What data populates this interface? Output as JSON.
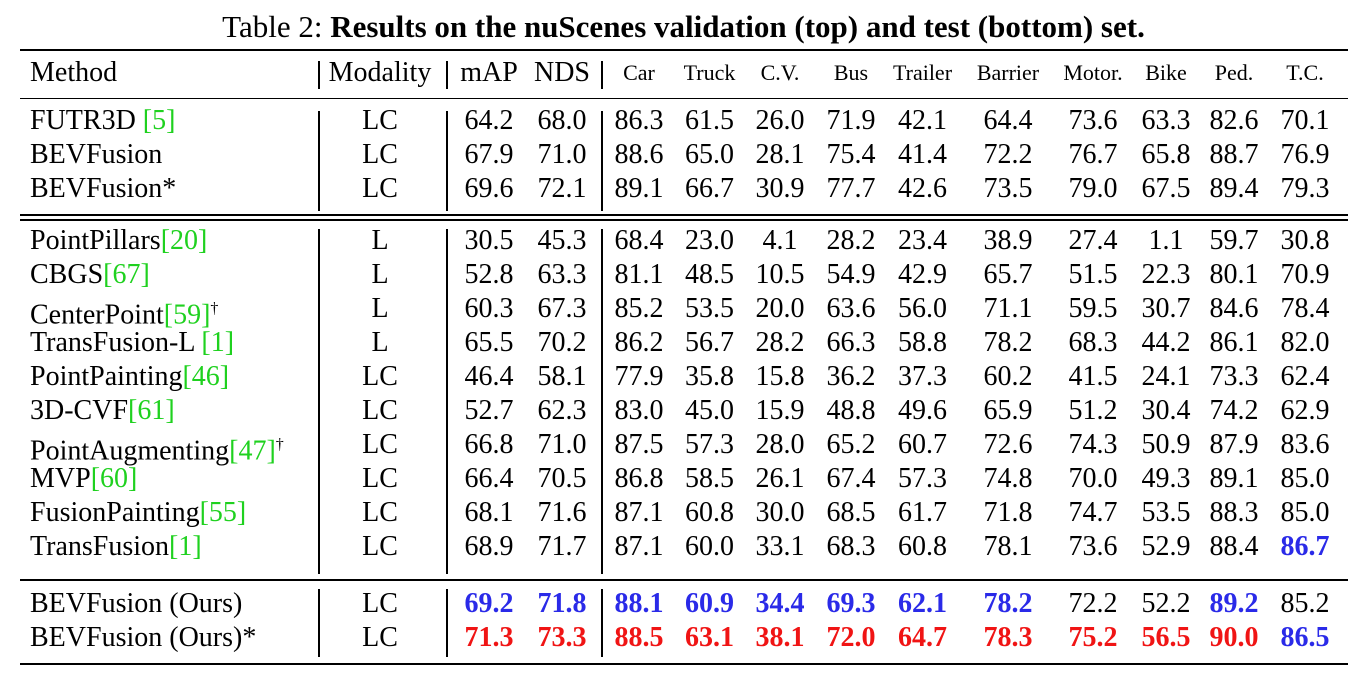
{
  "caption": {
    "label": "Table 2:",
    "title": "Results on the nuScenes validation (top) and test (bottom) set."
  },
  "header": {
    "method": "Method",
    "modality": "Modality",
    "map": "mAP",
    "nds": "NDS",
    "classes": [
      "Car",
      "Truck",
      "C.V.",
      "Bus",
      "Trailer",
      "Barrier",
      "Motor.",
      "Bike",
      "Ped.",
      "T.C."
    ]
  },
  "validation_rows": [
    {
      "name": "FUTR3D ",
      "cite": "[5]",
      "sup": "",
      "modality": "LC",
      "map": "64.2",
      "nds": "68.0",
      "classes": [
        "86.3",
        "61.5",
        "26.0",
        "71.9",
        "42.1",
        "64.4",
        "73.6",
        "63.3",
        "82.6",
        "70.1"
      ]
    },
    {
      "name": "BEVFusion",
      "cite": "",
      "sup": "",
      "modality": "LC",
      "map": "67.9",
      "nds": "71.0",
      "classes": [
        "88.6",
        "65.0",
        "28.1",
        "75.4",
        "41.4",
        "72.2",
        "76.7",
        "65.8",
        "88.7",
        "76.9"
      ]
    },
    {
      "name": "BEVFusion*",
      "cite": "",
      "sup": "",
      "modality": "LC",
      "map": "69.6",
      "nds": "72.1",
      "classes": [
        "89.1",
        "66.7",
        "30.9",
        "77.7",
        "42.6",
        "73.5",
        "79.0",
        "67.5",
        "89.4",
        "79.3"
      ]
    }
  ],
  "test_rows": [
    {
      "name": "PointPillars",
      "cite": "[20]",
      "sup": "",
      "modality": "L",
      "map": "30.5",
      "nds": "45.3",
      "classes": [
        "68.4",
        "23.0",
        "4.1",
        "28.2",
        "23.4",
        "38.9",
        "27.4",
        "1.1",
        "59.7",
        "30.8"
      ]
    },
    {
      "name": "CBGS",
      "cite": "[67]",
      "sup": "",
      "modality": "L",
      "map": "52.8",
      "nds": "63.3",
      "classes": [
        "81.1",
        "48.5",
        "10.5",
        "54.9",
        "42.9",
        "65.7",
        "51.5",
        "22.3",
        "80.1",
        "70.9"
      ]
    },
    {
      "name": "CenterPoint",
      "cite": "[59]",
      "sup": "†",
      "modality": "L",
      "map": "60.3",
      "nds": "67.3",
      "classes": [
        "85.2",
        "53.5",
        "20.0",
        "63.6",
        "56.0",
        "71.1",
        "59.5",
        "30.7",
        "84.6",
        "78.4"
      ]
    },
    {
      "name": "TransFusion-L ",
      "cite": "[1]",
      "sup": "",
      "modality": "L",
      "map": "65.5",
      "nds": "70.2",
      "classes": [
        "86.2",
        "56.7",
        "28.2",
        "66.3",
        "58.8",
        "78.2",
        "68.3",
        "44.2",
        "86.1",
        "82.0"
      ]
    },
    {
      "name": "PointPainting",
      "cite": "[46]",
      "sup": "",
      "modality": "LC",
      "map": "46.4",
      "nds": "58.1",
      "classes": [
        "77.9",
        "35.8",
        "15.8",
        "36.2",
        "37.3",
        "60.2",
        "41.5",
        "24.1",
        "73.3",
        "62.4"
      ]
    },
    {
      "name": "3D-CVF",
      "cite": "[61]",
      "sup": "",
      "modality": "LC",
      "map": "52.7",
      "nds": "62.3",
      "classes": [
        "83.0",
        "45.0",
        "15.9",
        "48.8",
        "49.6",
        "65.9",
        "51.2",
        "30.4",
        "74.2",
        "62.9"
      ]
    },
    {
      "name": "PointAugmenting",
      "cite": "[47]",
      "sup": "†",
      "modality": "LC",
      "map": "66.8",
      "nds": "71.0",
      "classes": [
        "87.5",
        "57.3",
        "28.0",
        "65.2",
        "60.7",
        "72.6",
        "74.3",
        "50.9",
        "87.9",
        "83.6"
      ]
    },
    {
      "name": "MVP",
      "cite": "[60]",
      "sup": "",
      "modality": "LC",
      "map": "66.4",
      "nds": "70.5",
      "classes": [
        "86.8",
        "58.5",
        "26.1",
        "67.4",
        "57.3",
        "74.8",
        "70.0",
        "49.3",
        "89.1",
        "85.0"
      ]
    },
    {
      "name": "FusionPainting",
      "cite": "[55]",
      "sup": "",
      "modality": "LC",
      "map": "68.1",
      "nds": "71.6",
      "classes": [
        "87.1",
        "60.8",
        "30.0",
        "68.5",
        "61.7",
        "71.8",
        "74.7",
        "53.5",
        "88.3",
        "85.0"
      ]
    },
    {
      "name": "TransFusion",
      "cite": "[1]",
      "sup": "",
      "modality": "LC",
      "map": "68.9",
      "nds": "71.7",
      "classes": [
        "87.1",
        "60.0",
        "33.1",
        "68.3",
        "60.8",
        "78.1",
        "73.6",
        "52.9",
        "88.4",
        "86.7"
      ]
    }
  ],
  "ours_rows": [
    {
      "name": "BEVFusion (Ours)",
      "cite": "",
      "sup": "",
      "modality": "LC",
      "map": "69.2",
      "nds": "71.8",
      "classes": [
        "88.1",
        "60.9",
        "34.4",
        "69.3",
        "62.1",
        "78.2",
        "72.2",
        "52.2",
        "89.2",
        "85.2"
      ]
    },
    {
      "name": "BEVFusion (Ours)*",
      "cite": "",
      "sup": "",
      "modality": "LC",
      "map": "71.3",
      "nds": "73.3",
      "classes": [
        "88.5",
        "63.1",
        "38.1",
        "72.0",
        "64.7",
        "78.3",
        "75.2",
        "56.5",
        "90.0",
        "86.5"
      ]
    }
  ],
  "highlight": {
    "test_rows.9.classes.9": "blue",
    "ours_rows.0.map": "blue",
    "ours_rows.0.nds": "blue",
    "ours_rows.0.classes.0": "blue",
    "ours_rows.0.classes.1": "blue",
    "ours_rows.0.classes.2": "blue",
    "ours_rows.0.classes.3": "blue",
    "ours_rows.0.classes.4": "blue",
    "ours_rows.0.classes.5": "blue",
    "ours_rows.0.classes.8": "blue",
    "ours_rows.1.map": "red",
    "ours_rows.1.nds": "red",
    "ours_rows.1.classes.0": "red",
    "ours_rows.1.classes.1": "red",
    "ours_rows.1.classes.2": "red",
    "ours_rows.1.classes.3": "red",
    "ours_rows.1.classes.4": "red",
    "ours_rows.1.classes.5": "red",
    "ours_rows.1.classes.6": "red",
    "ours_rows.1.classes.7": "red",
    "ours_rows.1.classes.8": "red",
    "ours_rows.1.classes.9": "blue"
  },
  "colors": {
    "best": "#f01414",
    "second": "#2a2ae8",
    "citation": "#1fd11f"
  }
}
